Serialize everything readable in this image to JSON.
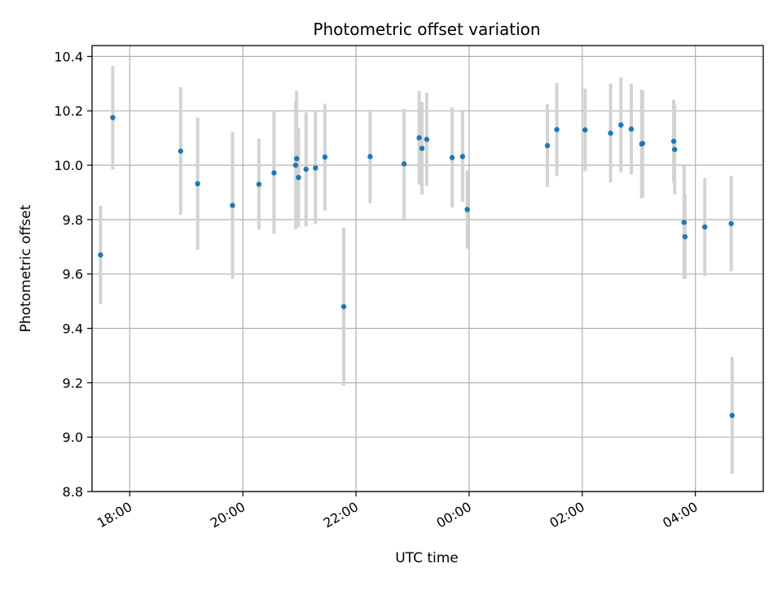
{
  "chart_data": {
    "type": "scatter",
    "title": "Photometric offset variation",
    "xlabel": "UTC time",
    "ylabel": "Photometric offset",
    "x_unit": "UTC time (HH:MM, night spanning midnight)",
    "xlim": [
      "17:20",
      "05:12"
    ],
    "ylim": [
      8.8,
      10.44
    ],
    "x_ticks": [
      "18:00",
      "20:00",
      "22:00",
      "00:00",
      "02:00",
      "04:00"
    ],
    "y_ticks": [
      "8.8",
      "9.0",
      "9.2",
      "9.4",
      "9.6",
      "9.8",
      "10.0",
      "10.2",
      "10.4"
    ],
    "grid": true,
    "colors": {
      "points": "#1f77b4",
      "errorbars": "#d3d3d3",
      "grid": "#b0b0b0"
    },
    "series": [
      {
        "points": [
          {
            "t": "17:29",
            "y": 9.67,
            "err": 0.18
          },
          {
            "t": "17:42",
            "y": 10.175,
            "err": 0.19
          },
          {
            "t": "18:54",
            "y": 10.052,
            "err": 0.235
          },
          {
            "t": "19:12",
            "y": 9.932,
            "err": 0.243
          },
          {
            "t": "19:49",
            "y": 9.852,
            "err": 0.27
          },
          {
            "t": "20:17",
            "y": 9.93,
            "err": 0.167
          },
          {
            "t": "20:33",
            "y": 9.972,
            "err": 0.224
          },
          {
            "t": "20:56",
            "y": 10.0,
            "err": 0.235
          },
          {
            "t": "20:57",
            "y": 10.024,
            "err": 0.25
          },
          {
            "t": "20:59",
            "y": 9.955,
            "err": 0.183
          },
          {
            "t": "21:07",
            "y": 9.985,
            "err": 0.21
          },
          {
            "t": "21:17",
            "y": 9.99,
            "err": 0.206
          },
          {
            "t": "21:27",
            "y": 10.03,
            "err": 0.196
          },
          {
            "t": "21:47",
            "y": 9.48,
            "err": 0.291
          },
          {
            "t": "22:15",
            "y": 10.032,
            "err": 0.172
          },
          {
            "t": "22:51",
            "y": 10.005,
            "err": 0.202
          },
          {
            "t": "23:07",
            "y": 10.101,
            "err": 0.172
          },
          {
            "t": "23:10",
            "y": 10.062,
            "err": 0.17
          },
          {
            "t": "23:15",
            "y": 10.095,
            "err": 0.171
          },
          {
            "t": "23:42",
            "y": 10.028,
            "err": 0.184
          },
          {
            "t": "23:53",
            "y": 10.032,
            "err": 0.167
          },
          {
            "t": "23:58",
            "y": 9.837,
            "err": 0.144
          },
          {
            "t": "01:23",
            "y": 10.072,
            "err": 0.152
          },
          {
            "t": "01:33",
            "y": 10.131,
            "err": 0.171
          },
          {
            "t": "02:03",
            "y": 10.13,
            "err": 0.152
          },
          {
            "t": "02:30",
            "y": 10.118,
            "err": 0.182
          },
          {
            "t": "02:41",
            "y": 10.148,
            "err": 0.174
          },
          {
            "t": "02:52",
            "y": 10.133,
            "err": 0.167
          },
          {
            "t": "03:03",
            "y": 10.078,
            "err": 0.2
          },
          {
            "t": "03:04",
            "y": 10.08,
            "err": 0.195
          },
          {
            "t": "03:37",
            "y": 10.088,
            "err": 0.153
          },
          {
            "t": "03:38",
            "y": 10.058,
            "err": 0.165
          },
          {
            "t": "03:48",
            "y": 9.79,
            "err": 0.208
          },
          {
            "t": "03:49",
            "y": 9.737,
            "err": 0.156
          },
          {
            "t": "04:10",
            "y": 9.773,
            "err": 0.18
          },
          {
            "t": "04:38",
            "y": 9.785,
            "err": 0.175
          },
          {
            "t": "04:39",
            "y": 9.08,
            "err": 0.215
          }
        ]
      }
    ]
  }
}
